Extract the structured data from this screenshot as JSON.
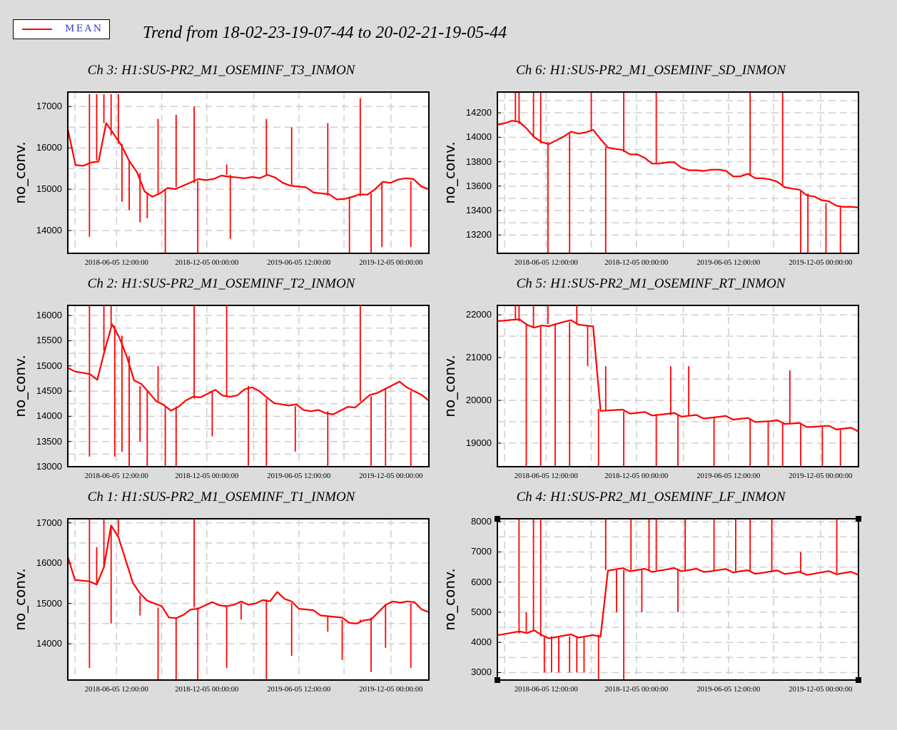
{
  "legend": {
    "label": "MEAN",
    "color": "#ff0000"
  },
  "title": "Trend from 18-02-23-19-07-44 to 20-02-21-19-05-44",
  "chart_data": [
    {
      "type": "line",
      "channel": "ch3",
      "title": "Ch 3: H1:SUS-PR2_M1_OSEMINF_T3_INMON",
      "ylabel": "no_conv.",
      "ylim": [
        13450,
        17350
      ],
      "yticks": [
        "14000",
        "15000",
        "16000",
        "17000"
      ],
      "ytick_values": [
        14000,
        15000,
        16000,
        17000
      ],
      "xticks": [
        "2018-06-05 12:00:00",
        "2018-12-05 00:00:00",
        "2019-06-05 12:00:00",
        "2019-12-05 00:00:00"
      ],
      "series": [
        {
          "values": [
            16500,
            15600,
            15550,
            15600,
            15700,
            16600,
            16300,
            16100,
            15700,
            15400,
            14900,
            14850,
            14900,
            15000,
            15050,
            15100,
            15150,
            15200,
            15250,
            15250,
            15300,
            15350,
            15300,
            15250,
            15250,
            15300,
            15350,
            15250,
            15200,
            15100,
            15050,
            15000,
            14950,
            14900,
            14850,
            14800,
            14780,
            14800,
            14830,
            14900,
            15000,
            15150,
            15200,
            15250,
            15250,
            15200,
            15100,
            15000
          ]
        }
      ],
      "spikes": [
        [
          0.06,
          17300
        ],
        [
          0.06,
          13850
        ],
        [
          0.08,
          17300
        ],
        [
          0.1,
          17300
        ],
        [
          0.12,
          17300
        ],
        [
          0.14,
          17300
        ],
        [
          0.15,
          14700
        ],
        [
          0.17,
          14500
        ],
        [
          0.2,
          14200
        ],
        [
          0.22,
          14300
        ],
        [
          0.25,
          16700
        ],
        [
          0.27,
          13450
        ],
        [
          0.3,
          16800
        ],
        [
          0.35,
          17000
        ],
        [
          0.36,
          13450
        ],
        [
          0.44,
          15600
        ],
        [
          0.45,
          13800
        ],
        [
          0.55,
          16700
        ],
        [
          0.62,
          16500
        ],
        [
          0.72,
          16600
        ],
        [
          0.78,
          13450
        ],
        [
          0.81,
          17200
        ],
        [
          0.84,
          13450
        ],
        [
          0.87,
          13600
        ],
        [
          0.95,
          13600
        ]
      ]
    },
    {
      "type": "line",
      "channel": "ch6",
      "title": "Ch 6: H1:SUS-PR2_M1_OSEMINF_SD_INMON",
      "ylabel": "no_conv.",
      "ylim": [
        13050,
        14370
      ],
      "yticks": [
        "13200",
        "13400",
        "13600",
        "13800",
        "14000",
        "14200"
      ],
      "ytick_values": [
        13200,
        13400,
        13600,
        13800,
        14000,
        14200
      ],
      "xticks": [
        "2018-06-05 12:00:00",
        "2018-12-05 00:00:00",
        "2019-06-05 12:00:00",
        "2019-12-05 00:00:00"
      ],
      "series": [
        {
          "values": [
            14120,
            14120,
            14130,
            14110,
            14080,
            14000,
            13950,
            13960,
            13980,
            14000,
            14030,
            14040,
            14040,
            14050,
            14000,
            13920,
            13900,
            13880,
            13870,
            13860,
            13820,
            13800,
            13790,
            13790,
            13780,
            13760,
            13730,
            13720,
            13740,
            13740,
            13730,
            13710,
            13690,
            13680,
            13690,
            13680,
            13670,
            13650,
            13620,
            13600,
            13580,
            13560,
            13540,
            13520,
            13480,
            13460,
            13450,
            13430,
            13420,
            13440
          ]
        }
      ],
      "spikes": [
        [
          0.05,
          14370
        ],
        [
          0.06,
          14370
        ],
        [
          0.1,
          14370
        ],
        [
          0.12,
          14370
        ],
        [
          0.14,
          13050
        ],
        [
          0.2,
          13050
        ],
        [
          0.26,
          14370
        ],
        [
          0.3,
          13050
        ],
        [
          0.35,
          14370
        ],
        [
          0.44,
          14370
        ],
        [
          0.7,
          14370
        ],
        [
          0.79,
          14370
        ],
        [
          0.84,
          13050
        ],
        [
          0.86,
          13050
        ],
        [
          0.91,
          13050
        ],
        [
          0.95,
          13050
        ]
      ]
    },
    {
      "type": "line",
      "channel": "ch2",
      "title": "Ch 2: H1:SUS-PR2_M1_OSEMINF_T2_INMON",
      "ylabel": "no_conv.",
      "ylim": [
        13000,
        16200
      ],
      "yticks": [
        "13000",
        "13500",
        "14000",
        "14500",
        "15000",
        "15500",
        "16000"
      ],
      "ytick_values": [
        13000,
        13500,
        14000,
        14500,
        15000,
        15500,
        16000
      ],
      "xticks": [
        "2018-06-05 12:00:00",
        "2018-12-05 00:00:00",
        "2019-06-05 12:00:00",
        "2019-12-05 00:00:00"
      ],
      "series": [
        {
          "values": [
            15000,
            14900,
            14850,
            14800,
            14750,
            15300,
            15800,
            15600,
            15200,
            14700,
            14600,
            14500,
            14300,
            14200,
            14150,
            14200,
            14300,
            14350,
            14400,
            14450,
            14500,
            14450,
            14400,
            14400,
            14500,
            14600,
            14500,
            14350,
            14300,
            14250,
            14200,
            14200,
            14150,
            14100,
            14100,
            14100,
            14050,
            14100,
            14150,
            14200,
            14300,
            14400,
            14500,
            14550,
            14600,
            14650,
            14600,
            14500,
            14400,
            14350
          ]
        }
      ],
      "spikes": [
        [
          0.06,
          16200
        ],
        [
          0.06,
          13200
        ],
        [
          0.1,
          16200
        ],
        [
          0.12,
          16200
        ],
        [
          0.13,
          13200
        ],
        [
          0.15,
          13300
        ],
        [
          0.17,
          13000
        ],
        [
          0.2,
          13500
        ],
        [
          0.22,
          13000
        ],
        [
          0.25,
          15000
        ],
        [
          0.27,
          13000
        ],
        [
          0.3,
          13000
        ],
        [
          0.35,
          16200
        ],
        [
          0.4,
          13600
        ],
        [
          0.44,
          16200
        ],
        [
          0.5,
          13000
        ],
        [
          0.55,
          13000
        ],
        [
          0.63,
          13300
        ],
        [
          0.72,
          13000
        ],
        [
          0.81,
          16200
        ],
        [
          0.84,
          13000
        ],
        [
          0.88,
          13000
        ],
        [
          0.95,
          13000
        ]
      ]
    },
    {
      "type": "line",
      "channel": "ch5",
      "title": "Ch 5: H1:SUS-PR2_M1_OSEMINF_RT_INMON",
      "ylabel": "no_conv.",
      "ylim": [
        18450,
        22220
      ],
      "yticks": [
        "19000",
        "20000",
        "21000",
        "22000"
      ],
      "ytick_values": [
        19000,
        20000,
        21000,
        22000
      ],
      "xticks": [
        "2018-06-05 12:00:00",
        "2018-12-05 00:00:00",
        "2019-06-05 12:00:00",
        "2019-12-05 00:00:00"
      ],
      "series": [
        {
          "values": [
            21900,
            21880,
            21870,
            21850,
            21800,
            21700,
            21720,
            21780,
            21800,
            21820,
            21830,
            21800,
            21750,
            21700,
            19800,
            19780,
            19760,
            19740,
            19720,
            19710,
            19700,
            19690,
            19680,
            19670,
            19660,
            19650,
            19640,
            19630,
            19620,
            19610,
            19600,
            19590,
            19580,
            19570,
            19560,
            19540,
            19520,
            19500,
            19490,
            19480,
            19460,
            19440,
            19420,
            19400,
            19380,
            19360,
            19350,
            19340,
            19330,
            19320
          ]
        }
      ],
      "spikes": [
        [
          0.05,
          22220
        ],
        [
          0.06,
          22220
        ],
        [
          0.08,
          18450
        ],
        [
          0.1,
          22220
        ],
        [
          0.12,
          18450
        ],
        [
          0.14,
          22220
        ],
        [
          0.16,
          18450
        ],
        [
          0.2,
          18450
        ],
        [
          0.22,
          22220
        ],
        [
          0.25,
          20800
        ],
        [
          0.28,
          18450
        ],
        [
          0.3,
          20800
        ],
        [
          0.35,
          18450
        ],
        [
          0.44,
          18450
        ],
        [
          0.48,
          20800
        ],
        [
          0.5,
          18450
        ],
        [
          0.53,
          20800
        ],
        [
          0.6,
          18450
        ],
        [
          0.7,
          18450
        ],
        [
          0.75,
          18450
        ],
        [
          0.79,
          18450
        ],
        [
          0.81,
          20700
        ],
        [
          0.84,
          18450
        ],
        [
          0.9,
          18450
        ],
        [
          0.95,
          18450
        ]
      ]
    },
    {
      "type": "line",
      "channel": "ch1",
      "title": "Ch 1: H1:SUS-PR2_M1_OSEMINF_T1_INMON",
      "ylabel": "no_conv.",
      "ylim": [
        13100,
        17100
      ],
      "yticks": [
        "14000",
        "15000",
        "16000",
        "17000"
      ],
      "ytick_values": [
        14000,
        15000,
        16000,
        17000
      ],
      "xticks": [
        "2018-06-05 12:00:00",
        "2018-12-05 00:00:00",
        "2019-06-05 12:00:00",
        "2019-12-05 00:00:00"
      ],
      "series": [
        {
          "values": [
            16200,
            15600,
            15550,
            15500,
            15500,
            15900,
            16900,
            16700,
            16100,
            15500,
            15200,
            15100,
            15000,
            14900,
            14700,
            14650,
            14700,
            14800,
            14900,
            14950,
            15000,
            15000,
            14950,
            14950,
            15000,
            15000,
            15000,
            15050,
            15100,
            15300,
            15100,
            15000,
            14900,
            14850,
            14800,
            14750,
            14700,
            14650,
            14600,
            14550,
            14500,
            14550,
            14650,
            14800,
            14950,
            15000,
            15050,
            15050,
            15000,
            14900,
            14800
          ]
        }
      ],
      "spikes": [
        [
          0.06,
          17100
        ],
        [
          0.06,
          13400
        ],
        [
          0.08,
          16400
        ],
        [
          0.1,
          17100
        ],
        [
          0.12,
          14500
        ],
        [
          0.14,
          17100
        ],
        [
          0.2,
          14700
        ],
        [
          0.25,
          13100
        ],
        [
          0.3,
          13100
        ],
        [
          0.35,
          17100
        ],
        [
          0.36,
          13100
        ],
        [
          0.44,
          13400
        ],
        [
          0.48,
          14600
        ],
        [
          0.55,
          13100
        ],
        [
          0.62,
          13700
        ],
        [
          0.72,
          14300
        ],
        [
          0.76,
          13600
        ],
        [
          0.81,
          14600
        ],
        [
          0.84,
          13300
        ],
        [
          0.88,
          13900
        ],
        [
          0.95,
          13400
        ]
      ]
    },
    {
      "type": "line",
      "channel": "ch4",
      "title": "Ch 4: H1:SUS-PR2_M1_OSEMINF_LF_INMON",
      "ylabel": "no_conv.",
      "ylim": [
        2750,
        8100
      ],
      "yticks": [
        "3000",
        "4000",
        "5000",
        "6000",
        "7000",
        "8000"
      ],
      "ytick_values": [
        3000,
        4000,
        5000,
        6000,
        7000,
        8000
      ],
      "xticks": [
        "2018-06-05 12:00:00",
        "2018-12-05 00:00:00",
        "2019-06-05 12:00:00",
        "2019-12-05 00:00:00"
      ],
      "series": [
        {
          "values": [
            4300,
            4300,
            4300,
            4300,
            4350,
            4400,
            4200,
            4200,
            4200,
            4200,
            4200,
            4200,
            4200,
            4200,
            4250,
            6400,
            6400,
            6400,
            6400,
            6400,
            6400,
            6400,
            6400,
            6400,
            6400,
            6400,
            6400,
            6400,
            6400,
            6380,
            6380,
            6370,
            6360,
            6360,
            6350,
            6340,
            6330,
            6330,
            6320,
            6310,
            6300,
            6300,
            6300,
            6300,
            6300,
            6300,
            6300,
            6300,
            6300,
            6300
          ]
        }
      ],
      "spikes": [
        [
          0.06,
          8100
        ],
        [
          0.08,
          5000
        ],
        [
          0.1,
          8100
        ],
        [
          0.12,
          8100
        ],
        [
          0.13,
          3000
        ],
        [
          0.15,
          3000
        ],
        [
          0.17,
          3000
        ],
        [
          0.2,
          3000
        ],
        [
          0.22,
          3000
        ],
        [
          0.24,
          3000
        ],
        [
          0.28,
          2750
        ],
        [
          0.3,
          8100
        ],
        [
          0.33,
          5000
        ],
        [
          0.35,
          2750
        ],
        [
          0.37,
          8100
        ],
        [
          0.4,
          5000
        ],
        [
          0.42,
          8100
        ],
        [
          0.44,
          8100
        ],
        [
          0.5,
          5000
        ],
        [
          0.52,
          8100
        ],
        [
          0.6,
          8100
        ],
        [
          0.66,
          8100
        ],
        [
          0.7,
          8100
        ],
        [
          0.76,
          8100
        ],
        [
          0.84,
          7000
        ],
        [
          0.94,
          8100
        ]
      ]
    }
  ]
}
